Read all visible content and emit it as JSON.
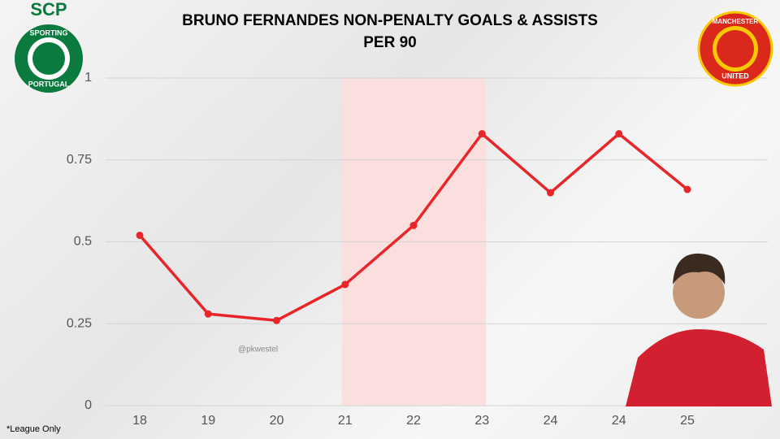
{
  "chart_data": {
    "type": "line",
    "title": "BRUNO FERNANDES NON-PENALTY GOALS & ASSISTS PER 90",
    "categories": [
      "18",
      "19",
      "20",
      "21",
      "22",
      "23",
      "24",
      "24",
      "25"
    ],
    "values": [
      0.52,
      0.28,
      0.26,
      0.37,
      0.55,
      0.83,
      0.65,
      0.83,
      0.66
    ],
    "color": "#e8262a",
    "ylim": [
      0,
      1
    ],
    "yticks": [
      0,
      0.25,
      0.5,
      0.75,
      1
    ],
    "grid": true,
    "highlight_range": [
      3,
      5
    ],
    "highlight_color": "#fbdede",
    "watermark": "@pkwestel",
    "footnote": "*League Only",
    "left_logo": {
      "top": "SCP",
      "ring_top": "SPORTING",
      "ring_bottom": "PORTUGAL"
    },
    "right_logo": {
      "ring_top": "MANCHESTER",
      "ring_bottom": "UNITED"
    }
  }
}
